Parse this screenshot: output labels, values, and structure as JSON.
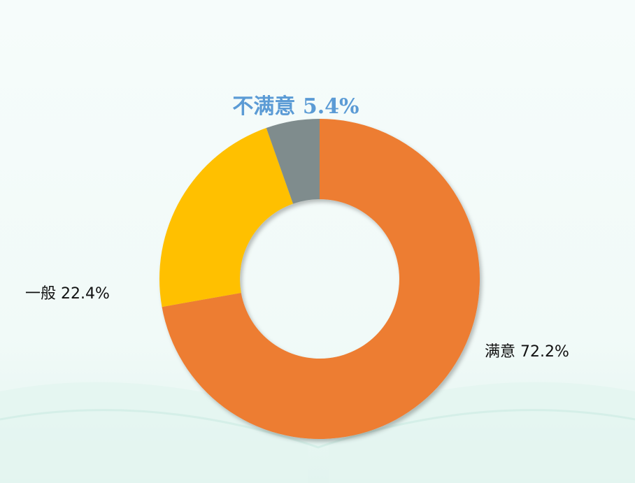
{
  "chart_data": {
    "type": "pie",
    "variant": "donut",
    "slices": [
      {
        "label": "满意",
        "value": 72.2,
        "display": "满意 72.2%",
        "color": "#ed7d31"
      },
      {
        "label": "一般",
        "value": 22.4,
        "display": "一般 22.4%",
        "color": "#ffc000"
      },
      {
        "label": "不满意",
        "value": 5.4,
        "display": "不满意 5.4%",
        "color": "#7f8c8d",
        "highlight_color": "#5b9bd5"
      }
    ]
  }
}
